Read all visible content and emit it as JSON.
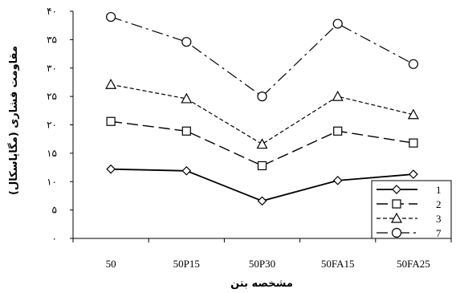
{
  "chart_data": {
    "type": "line",
    "categories": [
      "50",
      "50P15",
      "50P30",
      "50FA15",
      "50FA25"
    ],
    "ylim": [
      0,
      40
    ],
    "yticks": [
      {
        "value": 0,
        "label": "۰"
      },
      {
        "value": 5,
        "label": "۵"
      },
      {
        "value": 10,
        "label": "۱۰"
      },
      {
        "value": 15,
        "label": "۱۵"
      },
      {
        "value": 20,
        "label": "۲۰"
      },
      {
        "value": 25,
        "label": "۲۵"
      },
      {
        "value": 30,
        "label": "۳۰"
      },
      {
        "value": 35,
        "label": "۳۵"
      },
      {
        "value": 40,
        "label": "۴۰"
      }
    ],
    "xlabel": "مشخصه بتن",
    "ylabel": "مقاومت فشاری (مگاپاسکال)",
    "grid": false,
    "legend_position": "bottom-right",
    "series": [
      {
        "name": "1",
        "marker": "diamond",
        "dash": "solid",
        "values": [
          12.2,
          11.9,
          6.6,
          10.2,
          11.3
        ]
      },
      {
        "name": "2",
        "marker": "square",
        "dash": "long-dash",
        "values": [
          20.6,
          18.9,
          12.8,
          18.9,
          16.8
        ]
      },
      {
        "name": "3",
        "marker": "triangle",
        "dash": "short-dash",
        "values": [
          27.1,
          24.6,
          16.6,
          25.0,
          21.8
        ]
      },
      {
        "name": "7",
        "marker": "circle",
        "dash": "dash-dot",
        "values": [
          39.0,
          34.6,
          25.0,
          37.8,
          30.7
        ]
      }
    ]
  }
}
